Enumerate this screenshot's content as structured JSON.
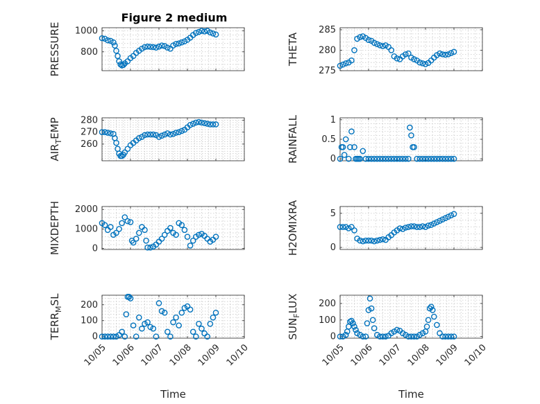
{
  "figure_title": "Figure 2 medium",
  "marker_color": "#0072BD",
  "x_tick_labels": [
    "10/05",
    "10/06",
    "10/07",
    "10/08",
    "10/09",
    "10/10"
  ],
  "x_label": "Time",
  "chart_data": [
    {
      "type": "scatter",
      "ylabel": "PRESSURE",
      "ylim": [
        620,
        1030
      ],
      "yticks": [
        800,
        1000
      ],
      "x": [
        0.0,
        0.1,
        0.2,
        0.3,
        0.4,
        0.45,
        0.5,
        0.55,
        0.6,
        0.65,
        0.7,
        0.75,
        0.8,
        0.9,
        1.0,
        1.1,
        1.2,
        1.3,
        1.4,
        1.5,
        1.6,
        1.7,
        1.8,
        1.9,
        2.0,
        2.1,
        2.2,
        2.3,
        2.4,
        2.5,
        2.6,
        2.7,
        2.8,
        2.9,
        3.0,
        3.1,
        3.2,
        3.3,
        3.4,
        3.5,
        3.6,
        3.7,
        3.8,
        3.9,
        4.0
      ],
      "y": [
        930,
        925,
        910,
        905,
        890,
        860,
        810,
        760,
        710,
        680,
        670,
        675,
        690,
        710,
        740,
        760,
        790,
        810,
        830,
        845,
        850,
        848,
        845,
        840,
        850,
        860,
        855,
        840,
        830,
        860,
        875,
        880,
        890,
        900,
        915,
        935,
        960,
        980,
        990,
        1000,
        995,
        1000,
        985,
        975,
        965
      ]
    },
    {
      "type": "scatter",
      "ylabel": "THETA",
      "ylim": [
        275,
        285.5
      ],
      "yticks": [
        275,
        280,
        285
      ],
      "x": [
        0.0,
        0.1,
        0.2,
        0.3,
        0.4,
        0.5,
        0.6,
        0.7,
        0.8,
        0.9,
        1.0,
        1.1,
        1.2,
        1.3,
        1.4,
        1.5,
        1.6,
        1.7,
        1.8,
        1.9,
        2.0,
        2.1,
        2.2,
        2.3,
        2.4,
        2.5,
        2.6,
        2.7,
        2.8,
        2.9,
        3.0,
        3.1,
        3.2,
        3.3,
        3.4,
        3.5,
        3.6,
        3.7,
        3.8,
        3.9,
        4.0
      ],
      "y": [
        276.2,
        276.5,
        276.8,
        277.0,
        277.5,
        280.0,
        282.8,
        283.2,
        283.4,
        283.0,
        282.5,
        282.3,
        281.8,
        281.5,
        281.2,
        281.0,
        281.2,
        280.8,
        280.0,
        278.5,
        278.0,
        277.8,
        278.5,
        279.0,
        279.2,
        278.2,
        277.8,
        277.5,
        277.0,
        276.8,
        276.6,
        276.9,
        277.5,
        278.2,
        278.8,
        279.2,
        279.0,
        278.9,
        279.0,
        279.3,
        279.6
      ]
    },
    {
      "type": "scatter",
      "ylabel": "AIR_TEMP",
      "ylim": [
        246,
        282
      ],
      "yticks": [
        260,
        270,
        280
      ],
      "x": [
        0.0,
        0.1,
        0.2,
        0.3,
        0.4,
        0.45,
        0.5,
        0.55,
        0.6,
        0.65,
        0.7,
        0.75,
        0.8,
        0.9,
        1.0,
        1.1,
        1.2,
        1.3,
        1.4,
        1.5,
        1.6,
        1.7,
        1.8,
        1.9,
        2.0,
        2.1,
        2.2,
        2.3,
        2.4,
        2.5,
        2.6,
        2.7,
        2.8,
        2.9,
        3.0,
        3.1,
        3.2,
        3.3,
        3.4,
        3.5,
        3.6,
        3.7,
        3.8,
        3.9,
        4.0
      ],
      "y": [
        270,
        270,
        269.5,
        269,
        268.5,
        265,
        261,
        256,
        252,
        250,
        250,
        251,
        253,
        256,
        259,
        261,
        263,
        265,
        266,
        267.5,
        268,
        268,
        268,
        267.5,
        266,
        267,
        268,
        269,
        268,
        268.5,
        269.5,
        270,
        271,
        272,
        274,
        276,
        277,
        278,
        278.5,
        278,
        277.5,
        277,
        276.5,
        276.5,
        276.5
      ]
    },
    {
      "type": "scatter",
      "ylabel": "RAINFALL",
      "ylim": [
        -0.05,
        1.05
      ],
      "yticks": [
        0,
        0.5,
        1
      ],
      "x": [
        0.0,
        0.05,
        0.1,
        0.15,
        0.2,
        0.3,
        0.35,
        0.4,
        0.5,
        0.55,
        0.6,
        0.65,
        0.7,
        0.8,
        0.9,
        1.0,
        1.1,
        1.2,
        1.3,
        1.4,
        1.5,
        1.6,
        1.7,
        1.8,
        1.9,
        2.0,
        2.1,
        2.2,
        2.3,
        2.4,
        2.45,
        2.5,
        2.55,
        2.6,
        2.7,
        2.8,
        2.9,
        3.0,
        3.1,
        3.2,
        3.3,
        3.4,
        3.5,
        3.6,
        3.7,
        3.8,
        3.9,
        4.0
      ],
      "y": [
        0.0,
        0.3,
        0.3,
        0.1,
        0.5,
        0.0,
        0.3,
        0.7,
        0.3,
        0.0,
        0.0,
        0.0,
        0.0,
        0.2,
        0.0,
        0.0,
        0.0,
        0.0,
        0.0,
        0.0,
        0.0,
        0.0,
        0.0,
        0.0,
        0.0,
        0.0,
        0.0,
        0.0,
        0.0,
        0.0,
        0.8,
        0.6,
        0.3,
        0.3,
        0.0,
        0.0,
        0.0,
        0.0,
        0.0,
        0.0,
        0.0,
        0.0,
        0.0,
        0.0,
        0.0,
        0.0,
        0.0,
        0.0
      ]
    },
    {
      "type": "scatter",
      "ylabel": "MIXDEPTH",
      "ylim": [
        -50,
        2150
      ],
      "yticks": [
        0,
        1000,
        2000
      ],
      "x": [
        0.0,
        0.1,
        0.2,
        0.3,
        0.4,
        0.5,
        0.6,
        0.7,
        0.8,
        0.9,
        1.0,
        1.05,
        1.1,
        1.2,
        1.3,
        1.4,
        1.5,
        1.55,
        1.6,
        1.7,
        1.8,
        1.9,
        2.0,
        2.1,
        2.2,
        2.3,
        2.4,
        2.5,
        2.6,
        2.7,
        2.8,
        2.9,
        3.0,
        3.1,
        3.2,
        3.3,
        3.4,
        3.5,
        3.6,
        3.7,
        3.8,
        3.9,
        4.0
      ],
      "y": [
        1300,
        1200,
        950,
        1100,
        700,
        800,
        1000,
        1300,
        1600,
        1400,
        1350,
        400,
        300,
        500,
        800,
        1100,
        950,
        400,
        50,
        50,
        100,
        200,
        350,
        500,
        700,
        900,
        1050,
        800,
        700,
        1300,
        1200,
        950,
        600,
        150,
        400,
        600,
        700,
        750,
        650,
        500,
        350,
        450,
        600
      ]
    },
    {
      "type": "scatter",
      "ylabel": "H2OMIXRA",
      "ylim": [
        -0.3,
        6
      ],
      "yticks": [
        0,
        5
      ],
      "x": [
        0.0,
        0.1,
        0.2,
        0.3,
        0.4,
        0.5,
        0.6,
        0.7,
        0.8,
        0.9,
        1.0,
        1.1,
        1.2,
        1.3,
        1.4,
        1.5,
        1.6,
        1.7,
        1.8,
        1.9,
        2.0,
        2.1,
        2.2,
        2.3,
        2.4,
        2.5,
        2.6,
        2.7,
        2.8,
        2.9,
        3.0,
        3.1,
        3.2,
        3.3,
        3.4,
        3.5,
        3.6,
        3.7,
        3.8,
        3.9,
        4.0
      ],
      "y": [
        3.0,
        3.0,
        3.0,
        2.8,
        3.0,
        2.5,
        1.3,
        1.0,
        0.9,
        1.0,
        1.0,
        1.0,
        0.9,
        1.0,
        1.1,
        1.2,
        1.1,
        1.5,
        1.8,
        2.2,
        2.5,
        2.8,
        2.7,
        2.9,
        3.0,
        3.1,
        3.1,
        3.0,
        3.0,
        3.1,
        3.0,
        3.2,
        3.3,
        3.5,
        3.7,
        3.9,
        4.1,
        4.3,
        4.5,
        4.7,
        4.9
      ]
    },
    {
      "type": "scatter",
      "ylabel": "TERR_MSL",
      "ylim": [
        -10,
        260
      ],
      "yticks": [
        0,
        100,
        200
      ],
      "x": [
        0.0,
        0.1,
        0.2,
        0.3,
        0.4,
        0.5,
        0.6,
        0.7,
        0.8,
        0.85,
        0.9,
        0.95,
        1.0,
        1.1,
        1.2,
        1.3,
        1.4,
        1.5,
        1.6,
        1.7,
        1.8,
        1.9,
        2.0,
        2.1,
        2.2,
        2.3,
        2.4,
        2.5,
        2.6,
        2.7,
        2.8,
        2.9,
        3.0,
        3.1,
        3.2,
        3.3,
        3.4,
        3.5,
        3.6,
        3.7,
        3.8,
        3.9,
        4.0
      ],
      "y": [
        0,
        0,
        0,
        0,
        0,
        0,
        10,
        30,
        0,
        140,
        250,
        250,
        240,
        70,
        0,
        120,
        50,
        80,
        90,
        60,
        50,
        0,
        210,
        160,
        150,
        30,
        0,
        90,
        120,
        70,
        150,
        180,
        190,
        170,
        30,
        0,
        80,
        50,
        20,
        0,
        80,
        120,
        150
      ]
    },
    {
      "type": "scatter",
      "ylabel": "SUN_FLUX",
      "ylim": [
        -10,
        250
      ],
      "yticks": [
        0,
        100,
        200
      ],
      "x": [
        0.0,
        0.1,
        0.2,
        0.25,
        0.3,
        0.35,
        0.4,
        0.45,
        0.5,
        0.55,
        0.6,
        0.7,
        0.8,
        0.9,
        0.95,
        1.0,
        1.05,
        1.1,
        1.15,
        1.2,
        1.3,
        1.4,
        1.5,
        1.6,
        1.7,
        1.8,
        1.9,
        2.0,
        2.1,
        2.2,
        2.3,
        2.4,
        2.5,
        2.6,
        2.7,
        2.8,
        2.9,
        3.0,
        3.05,
        3.1,
        3.15,
        3.2,
        3.25,
        3.3,
        3.4,
        3.5,
        3.6,
        3.7,
        3.8,
        3.9,
        4.0
      ],
      "y": [
        0,
        0,
        10,
        30,
        60,
        90,
        95,
        80,
        60,
        40,
        20,
        10,
        0,
        0,
        80,
        160,
        230,
        170,
        100,
        50,
        10,
        0,
        0,
        0,
        5,
        20,
        30,
        40,
        35,
        20,
        10,
        0,
        0,
        0,
        0,
        10,
        20,
        30,
        60,
        100,
        170,
        180,
        160,
        120,
        70,
        20,
        0,
        0,
        0,
        0,
        0
      ]
    }
  ]
}
